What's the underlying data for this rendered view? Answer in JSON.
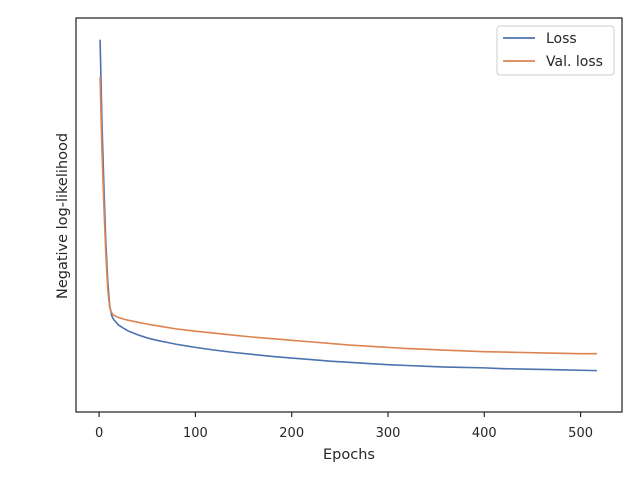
{
  "chart_data": {
    "type": "line",
    "title": "",
    "xlabel": "Epochs",
    "ylabel": "Negative log-likelihood",
    "xlim": [
      -24,
      543
    ],
    "ylim": [
      0,
      1
    ],
    "x_ticks": [
      0,
      100,
      200,
      300,
      400,
      500
    ],
    "y_ticks": [],
    "grid": false,
    "legend_position": "top-right",
    "series": [
      {
        "name": "Loss",
        "color": "#4c72b0",
        "x": [
          1,
          3,
          5,
          7,
          9,
          11,
          13,
          15,
          20,
          25,
          30,
          40,
          50,
          60,
          70,
          80,
          90,
          100,
          120,
          140,
          160,
          180,
          200,
          220,
          240,
          260,
          280,
          300,
          320,
          340,
          360,
          380,
          400,
          420,
          440,
          460,
          480,
          500,
          517
        ],
        "y": [
          0.945,
          0.73,
          0.57,
          0.43,
          0.33,
          0.27,
          0.245,
          0.235,
          0.221,
          0.213,
          0.206,
          0.196,
          0.188,
          0.182,
          0.177,
          0.172,
          0.168,
          0.164,
          0.157,
          0.151,
          0.146,
          0.141,
          0.137,
          0.133,
          0.129,
          0.126,
          0.123,
          0.12,
          0.118,
          0.116,
          0.114,
          0.113,
          0.112,
          0.11,
          0.109,
          0.108,
          0.107,
          0.106,
          0.105
        ]
      },
      {
        "name": "Val. loss",
        "color": "#dd8452",
        "x": [
          1,
          3,
          5,
          7,
          9,
          11,
          13,
          15,
          20,
          25,
          30,
          40,
          50,
          60,
          70,
          80,
          90,
          100,
          120,
          140,
          160,
          180,
          200,
          220,
          240,
          260,
          280,
          300,
          320,
          340,
          360,
          380,
          400,
          420,
          440,
          460,
          480,
          500,
          517
        ],
        "y": [
          0.85,
          0.66,
          0.52,
          0.4,
          0.31,
          0.265,
          0.252,
          0.246,
          0.24,
          0.236,
          0.233,
          0.228,
          0.223,
          0.219,
          0.215,
          0.211,
          0.208,
          0.205,
          0.2,
          0.195,
          0.19,
          0.186,
          0.182,
          0.178,
          0.174,
          0.17,
          0.167,
          0.164,
          0.161,
          0.159,
          0.157,
          0.155,
          0.153,
          0.152,
          0.151,
          0.15,
          0.149,
          0.148,
          0.148
        ]
      }
    ]
  }
}
